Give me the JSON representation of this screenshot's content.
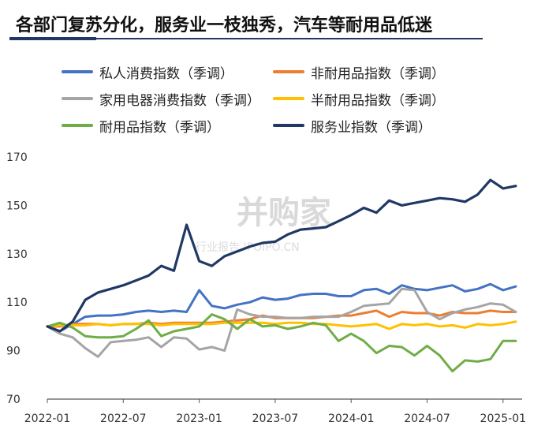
{
  "title": "各部门复苏分化，服务业一枝独秀，汽车等耐用品低迷",
  "watermark": {
    "brand": "并购家",
    "sub": "行业报告 IPOIPO.CN"
  },
  "chart_data": {
    "type": "line",
    "x_start": "2022-01",
    "x_ticks": [
      "2022-01",
      "2022-07",
      "2023-01",
      "2023-07",
      "2024-01",
      "2024-07",
      "2025-01"
    ],
    "y_ticks": [
      70,
      90,
      110,
      130,
      150,
      170
    ],
    "ylim": [
      70,
      170
    ],
    "grid": false,
    "legend_position": "top",
    "series": [
      {
        "name": "私人消费指数（季调）",
        "color": "#4472C4",
        "values": [
          100,
          98,
          101,
          104,
          104.5,
          104.5,
          105,
          106,
          106.5,
          106,
          106.5,
          106,
          115,
          108.5,
          107.5,
          109,
          110,
          112,
          111,
          111.5,
          113,
          113.5,
          113.5,
          112.5,
          112.5,
          115,
          115.5,
          113.5,
          117,
          115.5,
          115,
          116,
          117,
          114.5,
          115.5,
          117.5,
          115,
          116.5
        ]
      },
      {
        "name": "非耐用品指数（季调）",
        "color": "#ED7D31",
        "values": [
          100,
          100,
          101,
          101,
          101,
          100.5,
          101,
          101,
          101.5,
          101,
          101.5,
          101.5,
          101.5,
          101.5,
          102,
          102.5,
          103,
          104.5,
          103.5,
          103.5,
          103.5,
          103.5,
          104,
          104.5,
          104.5,
          105.5,
          106.5,
          104,
          106,
          105.5,
          105.5,
          104.5,
          106,
          105.5,
          105.5,
          106.5,
          106,
          106
        ]
      },
      {
        "name": "家用电器消费指数（季调）",
        "color": "#A5A5A5",
        "values": [
          100,
          97,
          95.5,
          91,
          87.5,
          93.5,
          94,
          94.5,
          95.5,
          91.5,
          95.5,
          95,
          90.5,
          91.5,
          90,
          107,
          105,
          104,
          104,
          103.5,
          103.5,
          104,
          104,
          104,
          106,
          108.5,
          109,
          109.5,
          115.5,
          115,
          106,
          103,
          105.5,
          107,
          108,
          109.5,
          109,
          106
        ]
      },
      {
        "name": "半耐用品指数（季调）",
        "color": "#FFC000",
        "values": [
          100,
          100.5,
          100.5,
          100.5,
          101,
          100.5,
          101,
          101,
          101,
          100.5,
          101,
          101,
          101,
          101,
          101.5,
          101.5,
          101.5,
          101.5,
          101,
          101.5,
          101.5,
          101,
          101,
          100.5,
          100,
          100.5,
          101,
          99,
          101,
          100.5,
          101,
          100,
          100.5,
          99.5,
          101,
          100.5,
          101,
          102
        ]
      },
      {
        "name": "耐用品指数（季调）",
        "color": "#70AD47",
        "values": [
          100,
          101.5,
          99.5,
          96,
          95.5,
          95.5,
          96,
          99,
          102.5,
          96,
          98,
          99,
          100,
          105,
          103,
          99,
          103,
          100,
          100.5,
          99,
          100,
          101.5,
          100.5,
          94,
          97,
          94,
          89,
          92,
          91.5,
          88,
          92,
          88,
          81.5,
          86,
          85.5,
          86.5,
          94,
          94
        ]
      },
      {
        "name": "服务业指数（季调）",
        "color": "#203864",
        "values": [
          100,
          98,
          102,
          111,
          114,
          115.5,
          117,
          119,
          121,
          125,
          123,
          142,
          127,
          125,
          129,
          131,
          133,
          134.5,
          135,
          138,
          140,
          140.5,
          141,
          143.5,
          146,
          149,
          147,
          152,
          150,
          151,
          152,
          153,
          152.5,
          151.5,
          154.5,
          160.5,
          157,
          158
        ]
      }
    ]
  }
}
